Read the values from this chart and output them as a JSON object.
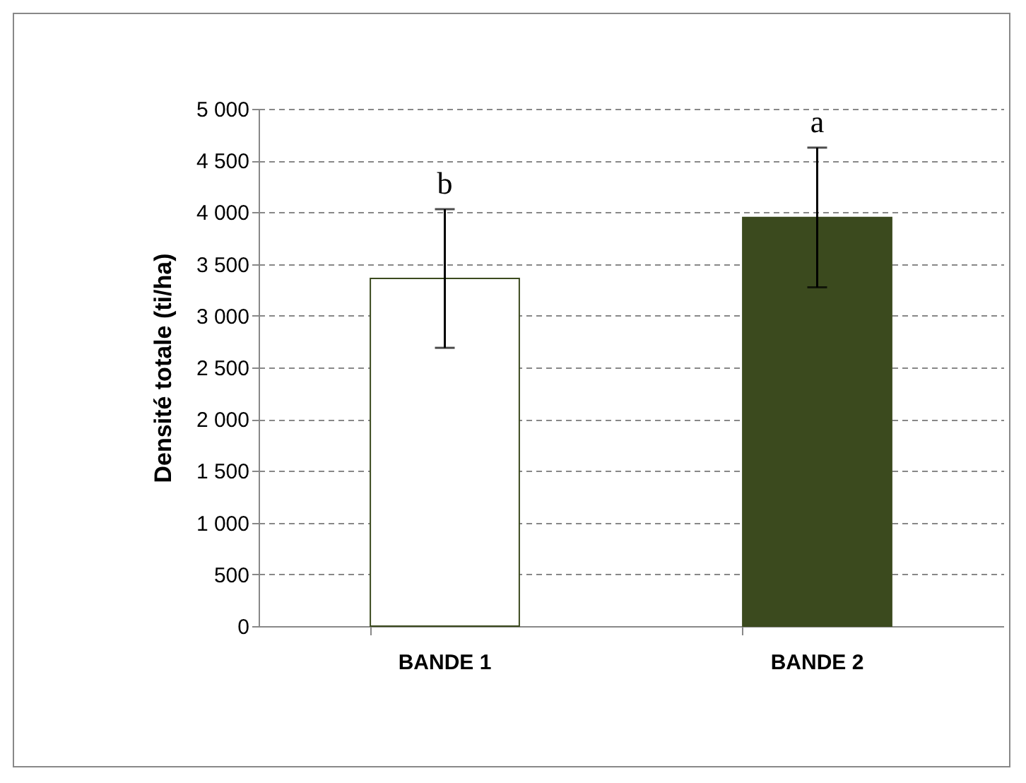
{
  "chart_data": {
    "type": "bar",
    "ylabel": "Densité totale (ti/ha)",
    "categories": [
      "BANDE 1",
      "BANDE 2"
    ],
    "values": [
      3360,
      3950
    ],
    "errors": [
      670,
      675
    ],
    "colors": [
      "#ffffff",
      "#3b4a1e"
    ],
    "ylim": [
      0,
      5000
    ],
    "yticks": [
      0,
      500,
      {
        "value": 1000,
        "label": "1 000"
      },
      {
        "value": 1500,
        "label": "1 500"
      },
      {
        "value": 2000,
        "label": "2 000"
      },
      {
        "value": 2500,
        "label": "2 500"
      },
      {
        "value": 3000,
        "label": "3 000"
      },
      {
        "value": 3500,
        "label": "3 500"
      },
      {
        "value": 4000,
        "label": "4 000"
      },
      {
        "value": 4500,
        "label": "4 500"
      },
      {
        "value": 5000,
        "label": "5 000"
      }
    ],
    "grid": true,
    "annotations": [
      "b",
      "a"
    ]
  }
}
